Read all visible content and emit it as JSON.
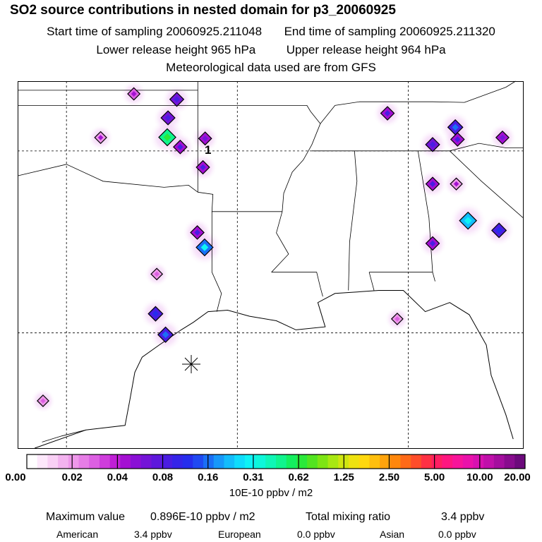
{
  "header": {
    "title": "SO2 source contributions in nested domain for p3_20060925",
    "start_label": "Start time of sampling",
    "start_value": "20060925.211048",
    "end_label": "End time of sampling",
    "end_value": "20060925.211320",
    "lower_label": "Lower release height",
    "lower_value": "965 hPa",
    "upper_label": "Upper release height",
    "upper_value": "964 hPa",
    "met_line": "Meteorological data used are from GFS"
  },
  "map": {
    "source_label": "1"
  },
  "colors": {
    "map_border": "#000000",
    "background": "#ffffff"
  },
  "chart_data": {
    "type": "heatmap",
    "title": "SO2 source contributions in nested domain for p3_20060925",
    "colorbar": {
      "unit": "10E-10 ppbv / m2",
      "ticks": [
        "0.00",
        "0.02",
        "0.04",
        "0.08",
        "0.16",
        "0.31",
        "0.62",
        "1.25",
        "2.50",
        "5.00",
        "10.00",
        "20.00"
      ],
      "colors": [
        "#ffffff",
        "#fde8fb",
        "#f9d0f5",
        "#f3b3ef",
        "#ee98ea",
        "#e67de6",
        "#dc5fe2",
        "#cf3ddc",
        "#c01fd6",
        "#a410d2",
        "#8a10d6",
        "#7414d8",
        "#5e18dc",
        "#4a1de2",
        "#3524e8",
        "#262ded",
        "#2049f2",
        "#1a6ff6",
        "#1798f9",
        "#13bcfb",
        "#0fdcfc",
        "#0ef3f5",
        "#0ef7da",
        "#0ff6b6",
        "#10f48e",
        "#14ef5f",
        "#2ae93a",
        "#52e420",
        "#7de514",
        "#a8e812",
        "#cfe611",
        "#eee210",
        "#ffd80f",
        "#ffbf0e",
        "#ffa40d",
        "#ff870c",
        "#ff6a18",
        "#ff4d2a",
        "#ff3144",
        "#ff1f62",
        "#ff1680",
        "#f8149a",
        "#ea12aa",
        "#d811b0",
        "#c010aa",
        "#a40e9e",
        "#880c8e",
        "#6c0a7c"
      ]
    },
    "sources": [
      {
        "lon": -97.24,
        "lat": 36.88,
        "value": 0.06
      },
      {
        "lon": -95.48,
        "lat": 36.7,
        "value": 0.12
      },
      {
        "lon": -95.84,
        "lat": 36.09,
        "value": 0.12
      },
      {
        "lon": -98.6,
        "lat": 35.44,
        "value": 0.05
      },
      {
        "lon": -95.87,
        "lat": 35.45,
        "value": 0.9
      },
      {
        "lon": -95.34,
        "lat": 35.13,
        "value": 0.1
      },
      {
        "lon": -94.32,
        "lat": 35.41,
        "value": 0.08
      },
      {
        "lon": -94.41,
        "lat": 34.46,
        "value": 0.09
      },
      {
        "lon": -86.85,
        "lat": 36.24,
        "value": 0.1
      },
      {
        "lon": -84.07,
        "lat": 35.78,
        "value": 0.18
      },
      {
        "lon": -83.98,
        "lat": 35.38,
        "value": 0.1
      },
      {
        "lon": -82.14,
        "lat": 35.44,
        "value": 0.08
      },
      {
        "lon": -85.0,
        "lat": 35.21,
        "value": 0.12
      },
      {
        "lon": -85.0,
        "lat": 33.91,
        "value": 0.1
      },
      {
        "lon": -84.03,
        "lat": 33.91,
        "value": 0.05
      },
      {
        "lon": -83.55,
        "lat": 32.7,
        "value": 0.4
      },
      {
        "lon": -82.28,
        "lat": 32.38,
        "value": 0.15
      },
      {
        "lon": -85.0,
        "lat": 31.95,
        "value": 0.1
      },
      {
        "lon": -94.64,
        "lat": 32.31,
        "value": 0.1
      },
      {
        "lon": -94.34,
        "lat": 31.82,
        "value": 0.35
      },
      {
        "lon": -96.3,
        "lat": 30.94,
        "value": 0.04
      },
      {
        "lon": -96.35,
        "lat": 29.63,
        "value": 0.15
      },
      {
        "lon": -95.94,
        "lat": 28.94,
        "value": 0.2
      },
      {
        "lon": -100.96,
        "lat": 26.76,
        "value": 0.04
      },
      {
        "lon": -86.45,
        "lat": 29.46,
        "value": 0.04
      }
    ]
  },
  "stats": {
    "max_label": "Maximum value",
    "max_value": "0.896E-10 ppbv / m2",
    "total_label": "Total mixing ratio",
    "total_value": "3.4 ppbv",
    "american_label": "American",
    "american_value": "3.4 ppbv",
    "european_label": "European",
    "european_value": "0.0 ppbv",
    "asian_label": "Asian",
    "asian_value": "0.0 ppbv"
  }
}
